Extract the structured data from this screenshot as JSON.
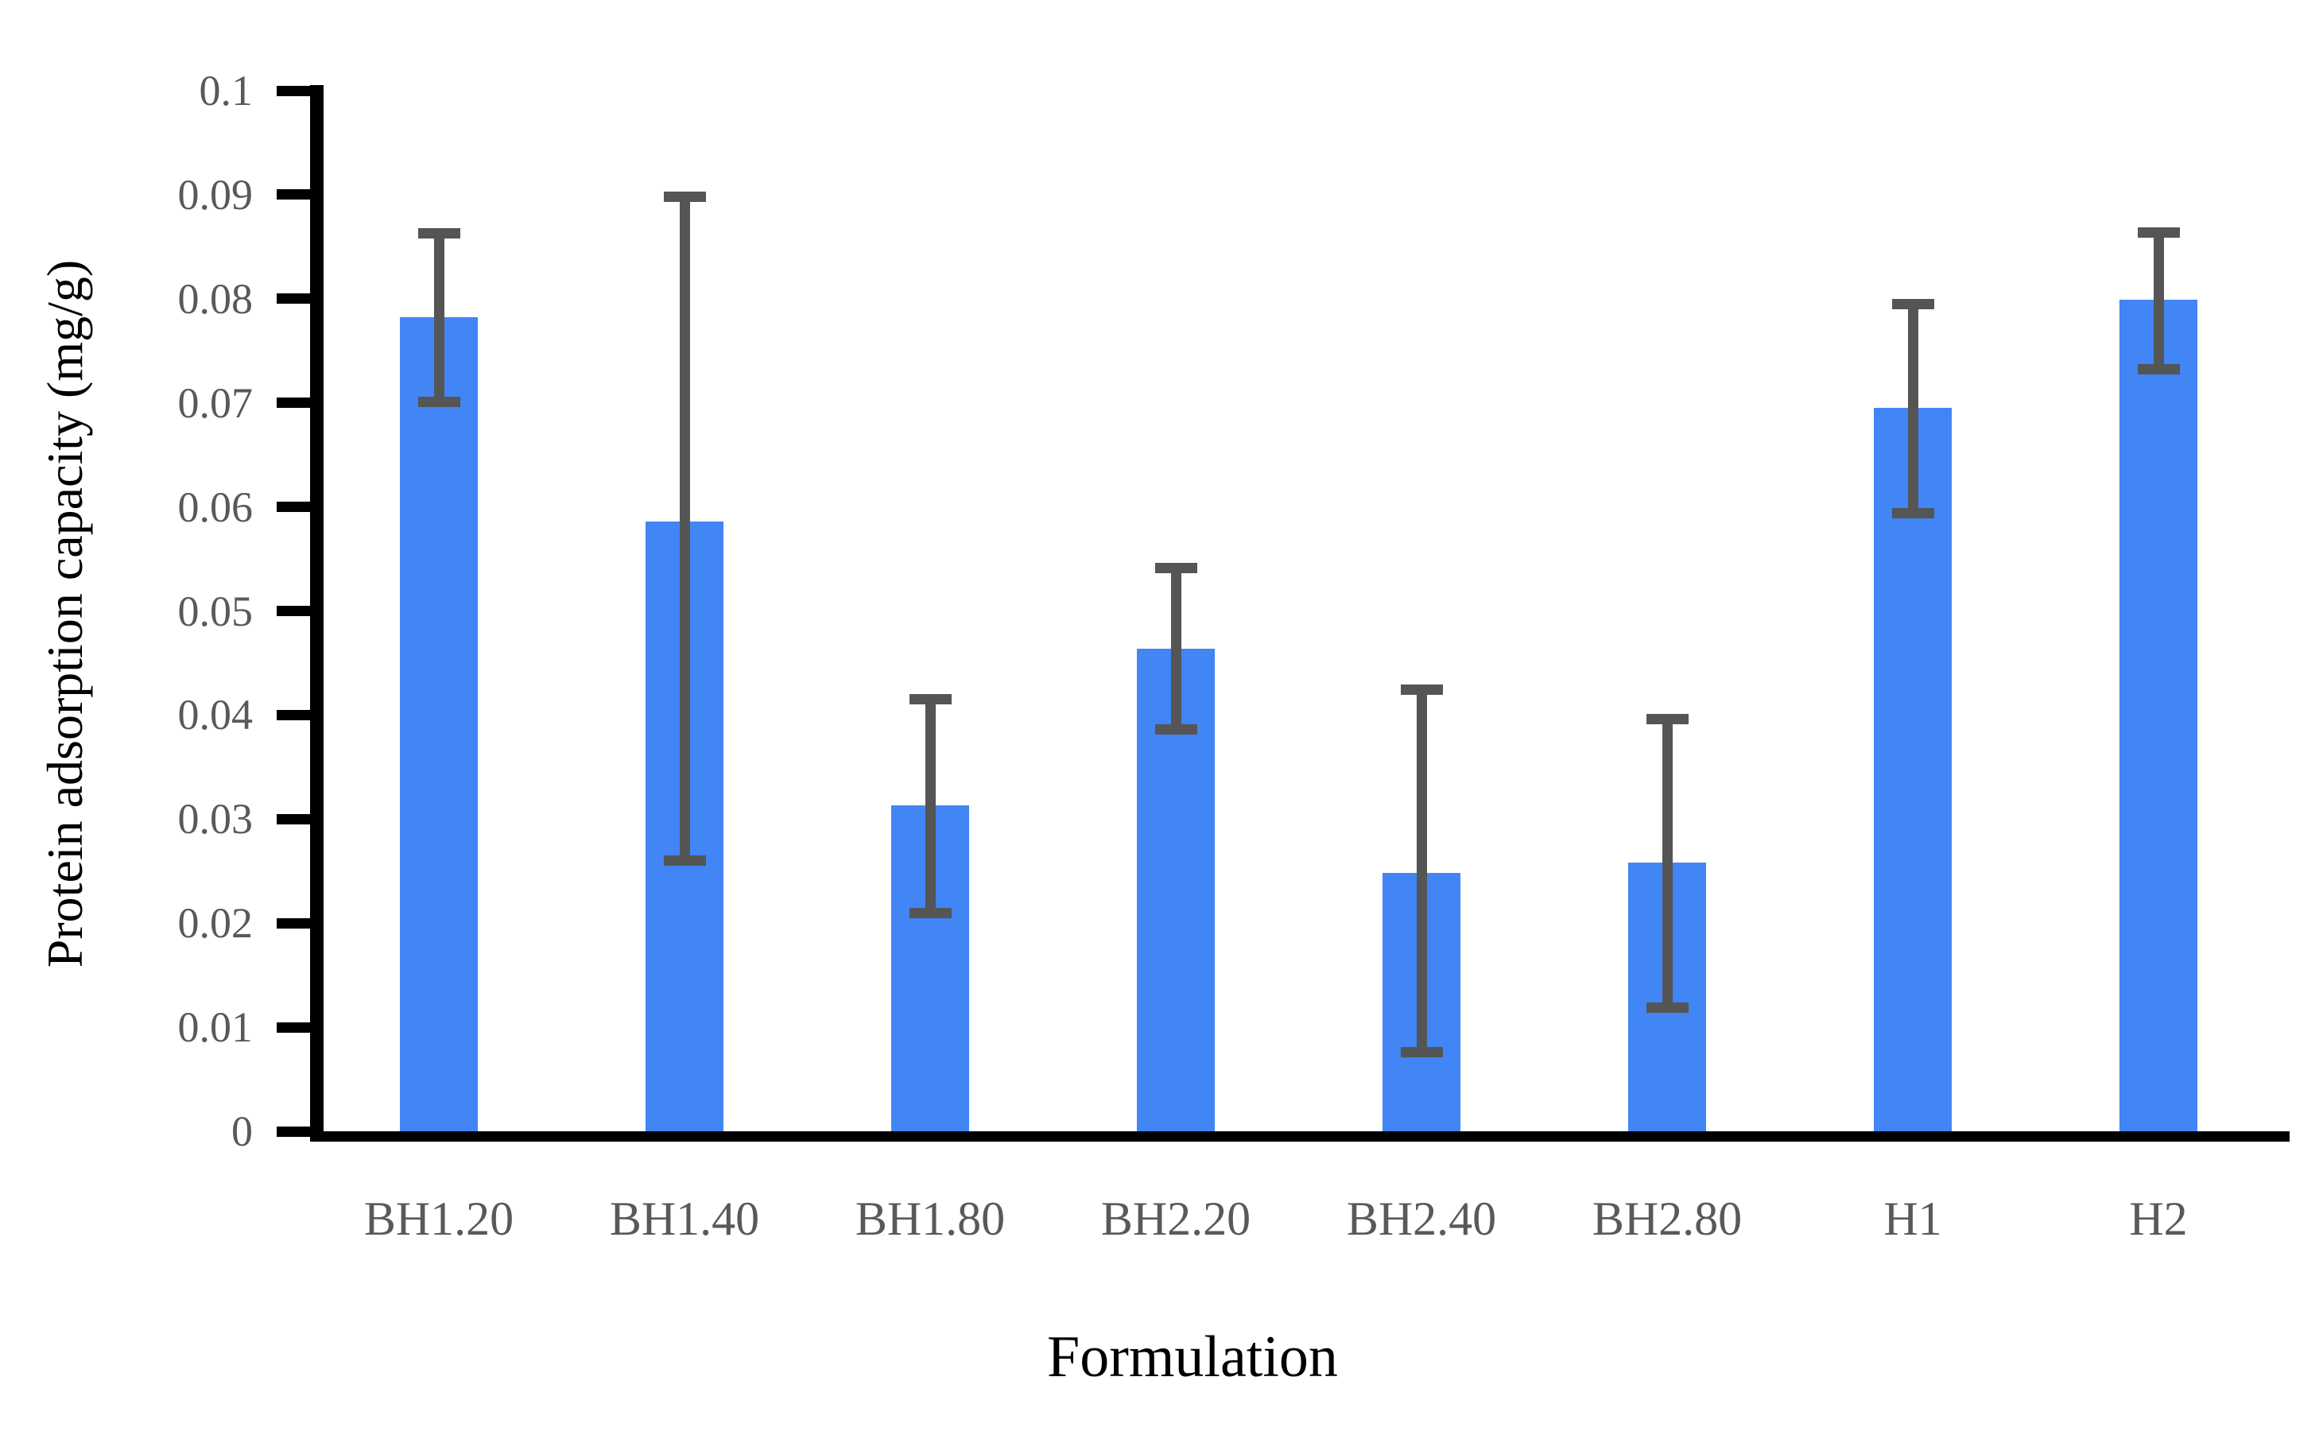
{
  "chart_data": {
    "type": "bar",
    "title": "",
    "xlabel": "Formulation",
    "ylabel": "Protein adsorption capacity (mg/g)",
    "categories": [
      "BH1.20",
      "BH1.40",
      "BH1.80",
      "BH2.20",
      "BH2.40",
      "BH2.80",
      "H1",
      "H2"
    ],
    "values": [
      0.0782,
      0.0586,
      0.0313,
      0.0464,
      0.0248,
      0.0258,
      0.0695,
      0.0799
    ],
    "error_up": [
      0.0081,
      0.0312,
      0.0102,
      0.0077,
      0.0176,
      0.0138,
      0.01,
      0.0065
    ],
    "error_down": [
      0.0081,
      0.0326,
      0.0103,
      0.0078,
      0.0172,
      0.0139,
      0.0101,
      0.0067
    ],
    "ylim": [
      0,
      0.1
    ],
    "ytick_step": 0.01,
    "ytick_labels": [
      "0",
      "0.01",
      "0.02",
      "0.03",
      "0.04",
      "0.05",
      "0.06",
      "0.07",
      "0.08",
      "0.09",
      "0.1"
    ],
    "grid": false,
    "legend": "none",
    "colors": {
      "bar": "#4285F4",
      "error_bar": "#555555",
      "axis": "#000000",
      "tick_label": "#595959",
      "category_label": "#595959",
      "axis_title": "#000000"
    }
  }
}
